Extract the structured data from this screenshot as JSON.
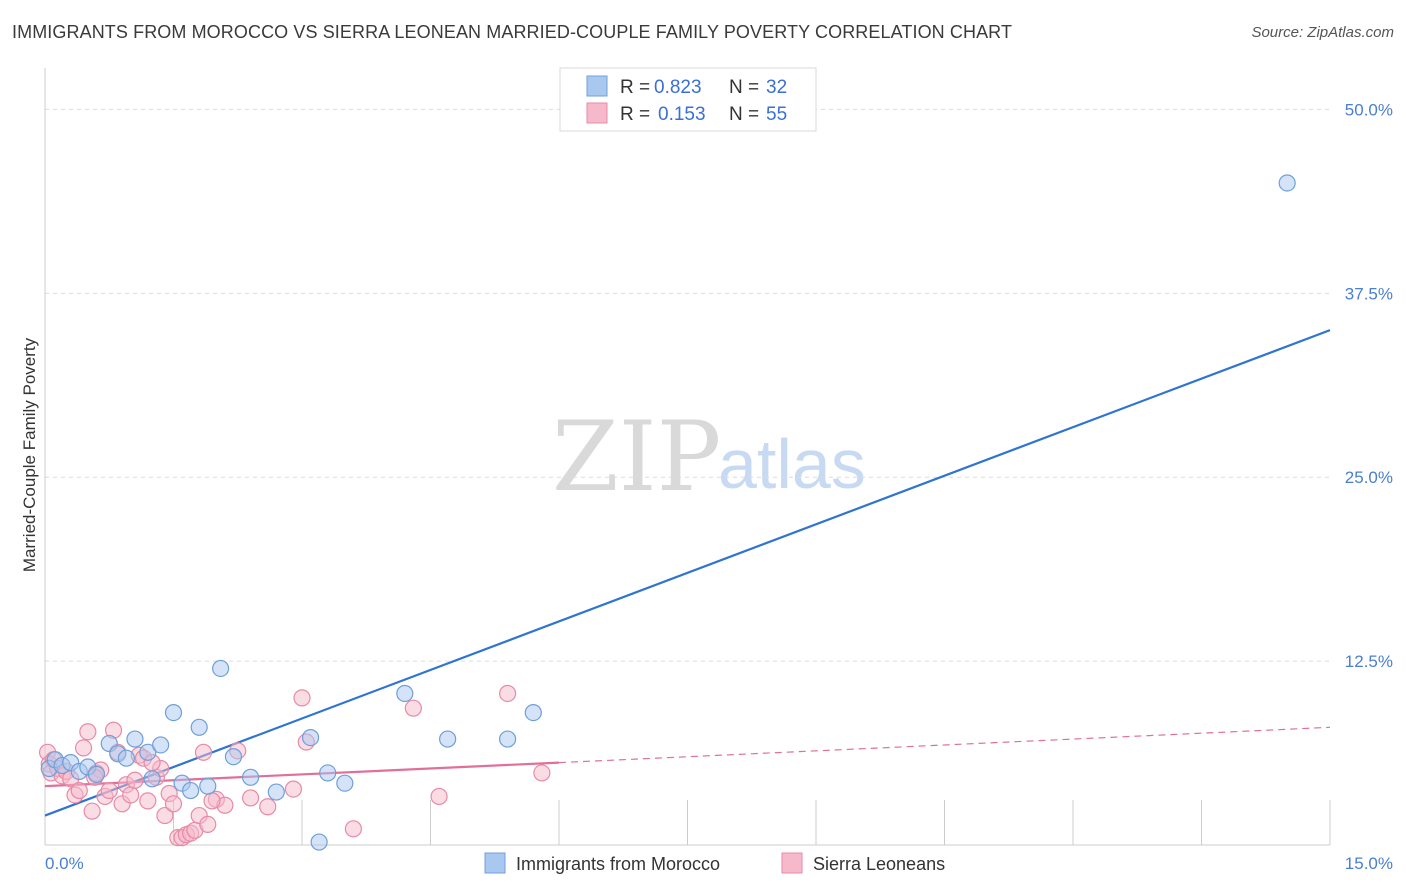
{
  "title": "IMMIGRANTS FROM MOROCCO VS SIERRA LEONEAN MARRIED-COUPLE FAMILY POVERTY CORRELATION CHART",
  "source": "Source: ZipAtlas.com",
  "watermark": {
    "part1": "ZIP",
    "part2": "atlas"
  },
  "colors": {
    "blue_fill": "#a9c8f0",
    "blue_stroke": "#6f9fd8",
    "blue_line": "#2f74d0",
    "pink_fill": "#f6b9cb",
    "pink_stroke": "#e88aa6",
    "pink_line": "#e0709a",
    "grid": "#dcdcdc",
    "tick_text": "#4a7fcf"
  },
  "legend": {
    "rows": [
      {
        "r_label": "R =",
        "r_value": "0.823",
        "n_label": "N =",
        "n_value": "32",
        "series": "blue"
      },
      {
        "r_label": "R =",
        "r_value": "0.153",
        "n_label": "N =",
        "n_value": "55",
        "series": "pink"
      }
    ]
  },
  "chart_data": {
    "type": "scatter",
    "title": "IMMIGRANTS FROM MOROCCO VS SIERRA LEONEAN MARRIED-COUPLE FAMILY POVERTY CORRELATION CHART",
    "xlabel": "",
    "ylabel": "Married-Couple Family Poverty",
    "xlim": [
      0,
      15
    ],
    "ylim": [
      0,
      52
    ],
    "x_tick_labels": [
      "0.0%",
      "15.0%"
    ],
    "y_ticks": [
      12.5,
      25.0,
      37.5,
      50.0
    ],
    "y_tick_labels": [
      "12.5%",
      "25.0%",
      "37.5%",
      "50.0%"
    ],
    "legend_position": "top-center",
    "series": [
      {
        "name": "Immigrants from Morocco",
        "color": "blue",
        "points": [
          [
            0.05,
            5.2
          ],
          [
            0.12,
            5.8
          ],
          [
            0.2,
            5.4
          ],
          [
            0.3,
            5.6
          ],
          [
            0.4,
            5.0
          ],
          [
            0.5,
            5.3
          ],
          [
            0.6,
            4.8
          ],
          [
            0.75,
            6.9
          ],
          [
            0.85,
            6.2
          ],
          [
            0.95,
            5.9
          ],
          [
            1.05,
            7.2
          ],
          [
            1.2,
            6.3
          ],
          [
            1.35,
            6.8
          ],
          [
            1.5,
            9.0
          ],
          [
            1.6,
            4.2
          ],
          [
            1.7,
            3.7
          ],
          [
            1.8,
            8.0
          ],
          [
            1.9,
            4.0
          ],
          [
            2.05,
            12.0
          ],
          [
            2.2,
            6.0
          ],
          [
            2.4,
            4.6
          ],
          [
            2.7,
            3.6
          ],
          [
            3.1,
            7.3
          ],
          [
            3.3,
            4.9
          ],
          [
            3.5,
            4.2
          ],
          [
            4.2,
            10.3
          ],
          [
            4.7,
            7.2
          ],
          [
            5.4,
            7.2
          ],
          [
            5.7,
            9.0
          ],
          [
            3.2,
            0.2
          ],
          [
            1.25,
            4.5
          ],
          [
            14.5,
            45.0
          ]
        ]
      },
      {
        "name": "Sierra Leoneans",
        "color": "pink",
        "points": [
          [
            0.03,
            6.3
          ],
          [
            0.05,
            5.5
          ],
          [
            0.07,
            4.9
          ],
          [
            0.1,
            5.8
          ],
          [
            0.15,
            5.2
          ],
          [
            0.2,
            4.7
          ],
          [
            0.25,
            5.0
          ],
          [
            0.3,
            4.5
          ],
          [
            0.35,
            3.4
          ],
          [
            0.4,
            3.7
          ],
          [
            0.45,
            6.6
          ],
          [
            0.5,
            7.7
          ],
          [
            0.55,
            2.3
          ],
          [
            0.6,
            4.9
          ],
          [
            0.65,
            5.1
          ],
          [
            0.7,
            3.3
          ],
          [
            0.75,
            3.7
          ],
          [
            0.8,
            7.8
          ],
          [
            0.85,
            6.3
          ],
          [
            0.9,
            2.8
          ],
          [
            0.95,
            4.1
          ],
          [
            1.0,
            3.4
          ],
          [
            1.05,
            4.4
          ],
          [
            1.1,
            6.1
          ],
          [
            1.15,
            5.9
          ],
          [
            1.2,
            3.0
          ],
          [
            1.3,
            4.6
          ],
          [
            1.35,
            5.2
          ],
          [
            1.4,
            2.0
          ],
          [
            1.45,
            3.5
          ],
          [
            1.5,
            2.8
          ],
          [
            1.55,
            0.5
          ],
          [
            1.6,
            0.5
          ],
          [
            1.65,
            0.7
          ],
          [
            1.7,
            0.8
          ],
          [
            1.75,
            1.0
          ],
          [
            1.8,
            2.0
          ],
          [
            1.85,
            6.3
          ],
          [
            1.9,
            1.4
          ],
          [
            2.0,
            3.1
          ],
          [
            2.1,
            2.7
          ],
          [
            2.25,
            6.4
          ],
          [
            2.4,
            3.2
          ],
          [
            2.6,
            2.6
          ],
          [
            2.9,
            3.8
          ],
          [
            3.0,
            10.0
          ],
          [
            3.05,
            7.0
          ],
          [
            3.6,
            1.1
          ],
          [
            4.3,
            9.3
          ],
          [
            4.6,
            3.3
          ],
          [
            5.4,
            10.3
          ],
          [
            5.8,
            4.9
          ],
          [
            1.95,
            3.0
          ],
          [
            0.58,
            4.6
          ],
          [
            1.25,
            5.6
          ]
        ]
      }
    ],
    "trend_lines": [
      {
        "series": "Immigrants from Morocco",
        "x": [
          0,
          15
        ],
        "y": [
          2.0,
          35.0
        ],
        "style": "solid"
      },
      {
        "series": "Sierra Leoneans",
        "x": [
          0,
          6
        ],
        "y": [
          4.0,
          5.6
        ],
        "style": "solid"
      },
      {
        "series": "Sierra Leoneans",
        "x": [
          6,
          15
        ],
        "y": [
          5.6,
          8.0
        ],
        "style": "dashed"
      }
    ]
  }
}
